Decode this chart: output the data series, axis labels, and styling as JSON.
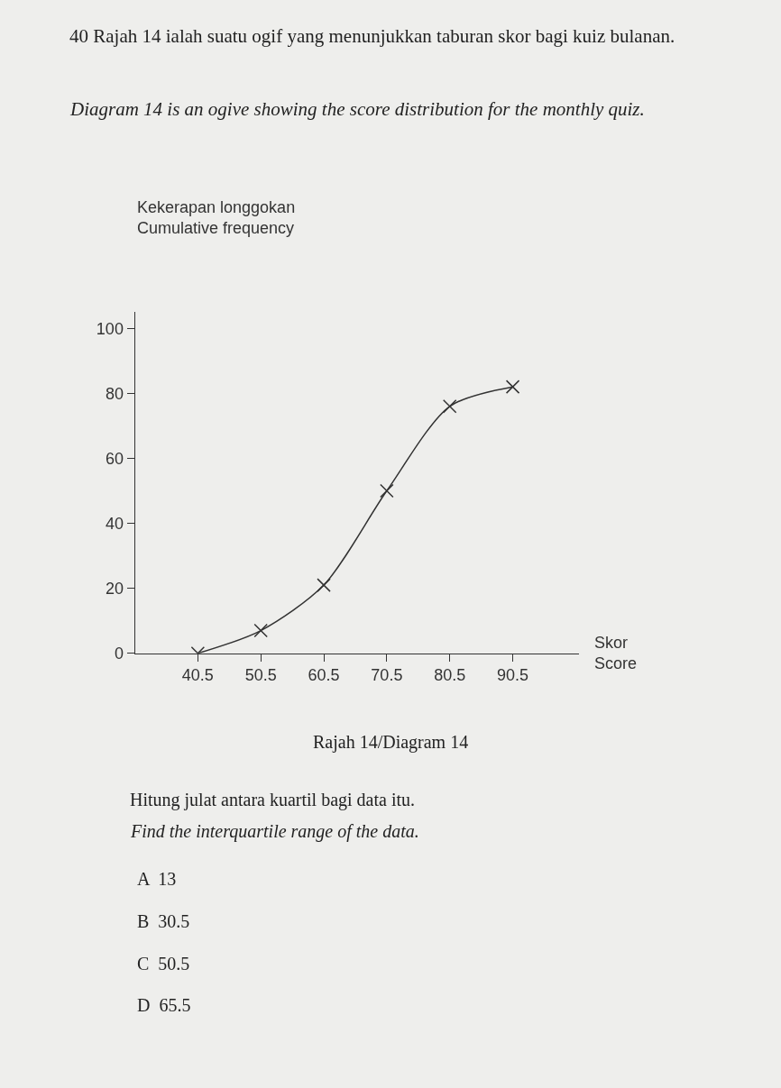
{
  "chart_data": {
    "type": "line",
    "title": "40 Rajah 14 ialah suatu ogif yang menunjukkan taburan skor bagi kuiz bulanan.",
    "subtitle": "Diagram 14 is an ogive showing the score distribution for the monthly quiz.",
    "ylabel": "Kekerapan longgokan\nCumulative frequency",
    "xlabel": "Skor\nScore",
    "x": [
      40.5,
      50.5,
      60.5,
      70.5,
      80.5,
      90.5
    ],
    "series": [
      {
        "color": "#333333",
        "values": [
          0,
          7,
          21,
          50,
          76,
          82
        ]
      }
    ],
    "xlim": [
      30.5,
      101
    ],
    "xticks": [
      40.5,
      50.5,
      60.5,
      70.5,
      80.5,
      90.5
    ],
    "ylim": [
      0,
      105
    ],
    "yticks": [
      0,
      20,
      40,
      60,
      80,
      100
    ],
    "marker": "cross",
    "line_style": "solid",
    "annotations": [
      "Rajah 14/Diagram 14",
      "Hitung julat antara kuartil bagi data itu.",
      "Find the interquartile range of the data.",
      "A  13",
      "B  30.5",
      "C  50.5",
      "D  65.5"
    ]
  }
}
